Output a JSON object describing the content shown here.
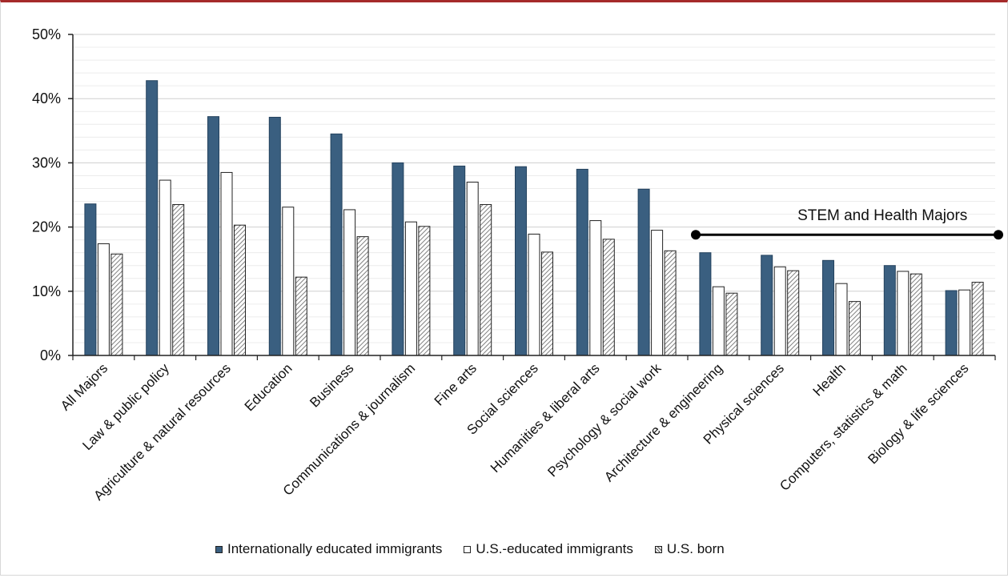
{
  "colors": {
    "international": "#3a5f80",
    "us_educated": "#ffffff",
    "us_born_stripe": "#7f7f7f",
    "grid": "#d9d9d9",
    "accent_border": "#a52a2a",
    "stem_line": "#000000"
  },
  "chart_data": {
    "type": "bar",
    "categories": [
      "All Majors",
      "Law & public policy",
      "Agriculture & natural resources",
      "Education",
      "Business",
      "Communications & journalism",
      "Fine arts",
      "Social sciences",
      "Humanities & liberal arts",
      "Psychology & social work",
      "Architecture & engineering",
      "Physical sciences",
      "Health",
      "Computers, statistics & math",
      "Biology & life sciences"
    ],
    "series": [
      {
        "name": "Internationally educated immigrants",
        "values": [
          23.6,
          42.8,
          37.2,
          37.1,
          34.5,
          30.0,
          29.5,
          29.4,
          29.0,
          25.9,
          16.0,
          15.6,
          14.8,
          14.0,
          10.1
        ]
      },
      {
        "name": "U.S.-educated immigrants",
        "values": [
          17.4,
          27.3,
          28.5,
          23.1,
          22.7,
          20.8,
          27.0,
          18.9,
          21.0,
          19.5,
          10.7,
          13.8,
          11.2,
          13.1,
          10.2
        ]
      },
      {
        "name": "U.S. born",
        "values": [
          15.8,
          23.5,
          20.3,
          12.2,
          18.5,
          20.1,
          23.5,
          16.1,
          18.1,
          16.3,
          9.7,
          13.2,
          8.4,
          12.7,
          11.4
        ]
      }
    ],
    "ylim": [
      0,
      50
    ],
    "yticks": [
      "0%",
      "10%",
      "20%",
      "30%",
      "40%",
      "50%"
    ],
    "grid": true,
    "legend_placement": "bottom",
    "annotation": {
      "text": "STEM and Health Majors",
      "from_category": "Architecture & engineering",
      "to_category": "Biology & life sciences"
    }
  }
}
